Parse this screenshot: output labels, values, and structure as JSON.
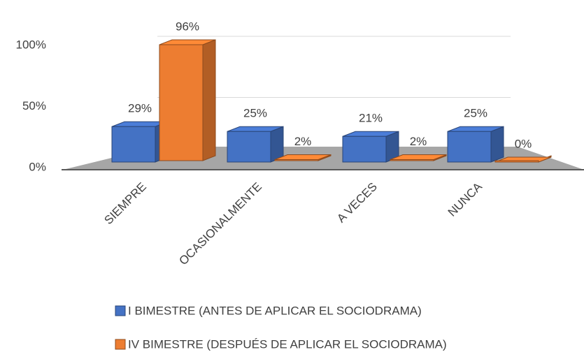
{
  "chart_data": {
    "type": "bar3d",
    "categories": [
      "SIEMPRE",
      "OCASIONALMENTE",
      "A VECES",
      "NUNCA"
    ],
    "series": [
      {
        "name": "I BIMESTRE (ANTES DE APLICAR EL SOCIODRAMA)",
        "color": "#4472c4",
        "values": [
          29,
          25,
          21,
          25
        ],
        "value_labels": [
          "29%",
          "25%",
          "21%",
          "25%"
        ]
      },
      {
        "name": "IV BIMESTRE (DESPUÉS DE APLICAR EL SOCIODRAMA)",
        "color": "#ed7d31",
        "values": [
          96,
          2,
          2,
          0
        ],
        "value_labels": [
          "96%",
          "2%",
          "2%",
          "0%"
        ]
      }
    ],
    "ylim": [
      0,
      100
    ],
    "yticks": [
      {
        "value": 0,
        "label": "0%"
      },
      {
        "value": 50,
        "label": "50%"
      },
      {
        "value": 100,
        "label": "100%"
      }
    ],
    "grid": true,
    "legend": "bottom"
  }
}
